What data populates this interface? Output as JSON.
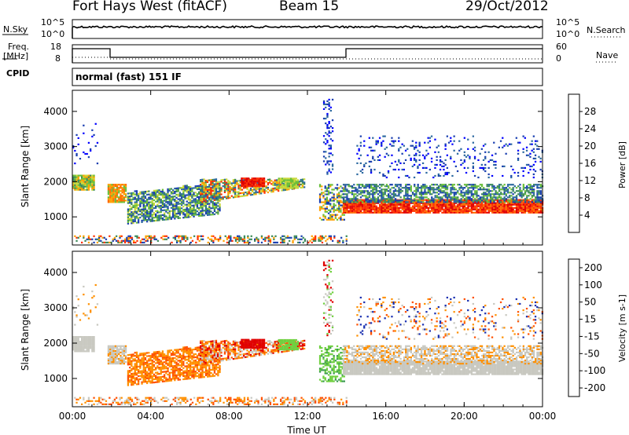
{
  "header": {
    "station": "Fort Hays West (fitACF)",
    "beam": "Beam 15",
    "date": "29/Oct/2012"
  },
  "top_panels": {
    "nsky_label": "N.Sky",
    "nsky_ticks": [
      "10^5",
      "10^0"
    ],
    "nsearch_label": "N.Search",
    "freq_label_1": "Freq.",
    "freq_label_2": "[MHz]",
    "freq_ticks": [
      "18",
      "8"
    ],
    "nave_label": "Nave",
    "nave_ticks": [
      "60",
      "0"
    ],
    "cpid_label": "CPID",
    "cpid_text": "normal (fast) 151 IF"
  },
  "chart_data": [
    {
      "type": "heatmap",
      "name": "power",
      "ylabel": "Slant Range [km]",
      "xlabel": "Time UT",
      "x_ticks": [
        "00:00",
        "04:00",
        "08:00",
        "12:00",
        "16:00",
        "20:00",
        "00:00"
      ],
      "y_ticks": [
        1000,
        2000,
        3000,
        4000
      ],
      "ylim": [
        200,
        4600
      ],
      "xlim_hours": [
        0,
        24
      ],
      "colorbar": {
        "label": "Power [dB]",
        "ticks": [
          4,
          8,
          12,
          16,
          20,
          24,
          28
        ],
        "range": [
          0,
          32
        ],
        "colors": [
          "#0000ff",
          "#1a3fb0",
          "#2d6aa0",
          "#3c8a5a",
          "#6abf3a",
          "#c8d83a",
          "#ffa000",
          "#ff6a00",
          "#ff3000",
          "#e00000"
        ]
      }
    },
    {
      "type": "heatmap",
      "name": "velocity",
      "ylabel": "Slant Range [km]",
      "xlabel": "Time UT",
      "x_ticks": [
        "00:00",
        "04:00",
        "08:00",
        "12:00",
        "16:00",
        "20:00",
        "00:00"
      ],
      "y_ticks": [
        1000,
        2000,
        3000,
        4000
      ],
      "ylim": [
        200,
        4600
      ],
      "xlim_hours": [
        0,
        24
      ],
      "colorbar": {
        "label": "Velocity [m s-1]",
        "ticks": [
          200,
          100,
          50,
          15,
          -15,
          -50,
          -100,
          -200
        ],
        "colors": [
          "#1a30b0",
          "#3a60c0",
          "#3a9a50",
          "#70d040",
          "#c8c8c0",
          "#ff9000",
          "#ff5000",
          "#e00000"
        ]
      }
    }
  ],
  "xaxis_title": "Time UT"
}
